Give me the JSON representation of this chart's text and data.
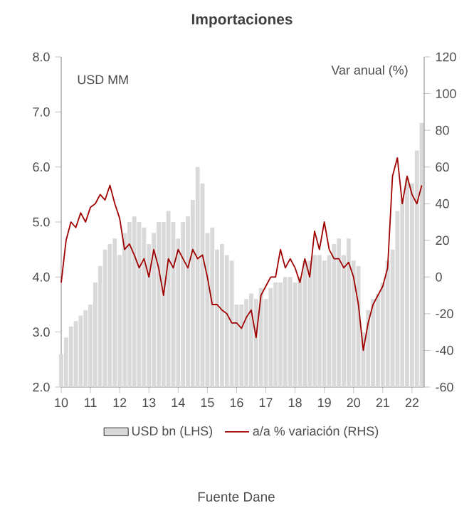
{
  "chart_data": {
    "type": "bar",
    "title": "Importaciones",
    "ylabel": "USD MM",
    "y2label": "Var anual (%)",
    "annotations": [
      "Fuente Dane"
    ],
    "x": [
      "2010-01",
      "2010-03",
      "2010-05",
      "2010-07",
      "2010-09",
      "2010-11",
      "2011-01",
      "2011-03",
      "2011-05",
      "2011-07",
      "2011-09",
      "2011-11",
      "2012-01",
      "2012-03",
      "2012-05",
      "2012-07",
      "2012-09",
      "2012-11",
      "2013-01",
      "2013-03",
      "2013-05",
      "2013-07",
      "2013-09",
      "2013-11",
      "2014-01",
      "2014-03",
      "2014-05",
      "2014-07",
      "2014-09",
      "2014-11",
      "2015-01",
      "2015-03",
      "2015-05",
      "2015-07",
      "2015-09",
      "2015-11",
      "2016-01",
      "2016-03",
      "2016-05",
      "2016-07",
      "2016-09",
      "2016-11",
      "2017-01",
      "2017-03",
      "2017-05",
      "2017-07",
      "2017-09",
      "2017-11",
      "2018-01",
      "2018-03",
      "2018-05",
      "2018-07",
      "2018-09",
      "2018-11",
      "2019-01",
      "2019-03",
      "2019-05",
      "2019-07",
      "2019-09",
      "2019-11",
      "2020-01",
      "2020-03",
      "2020-05",
      "2020-07",
      "2020-09",
      "2020-11",
      "2021-01",
      "2021-03",
      "2021-05",
      "2021-07",
      "2021-09",
      "2021-11",
      "2022-01",
      "2022-03",
      "2022-05"
    ],
    "series": [
      {
        "name": "USD bn (LHS)",
        "color": "#d9d9d9",
        "values": [
          2.6,
          2.9,
          3.1,
          3.2,
          3.3,
          3.4,
          3.5,
          3.9,
          4.2,
          4.5,
          4.6,
          4.7,
          4.4,
          4.8,
          5.0,
          5.1,
          5.0,
          4.9,
          4.6,
          4.8,
          5.0,
          5.0,
          5.2,
          5.0,
          4.7,
          5.0,
          5.1,
          5.4,
          6.0,
          5.7,
          4.8,
          4.9,
          4.5,
          4.6,
          4.4,
          4.3,
          3.5,
          3.5,
          3.6,
          3.7,
          3.6,
          3.8,
          3.6,
          3.8,
          3.9,
          3.9,
          4.0,
          4.0,
          3.9,
          4.0,
          4.3,
          4.3,
          4.4,
          4.4,
          4.3,
          4.4,
          4.6,
          4.7,
          4.4,
          4.7,
          4.3,
          4.2,
          3.0,
          3.4,
          3.6,
          3.7,
          3.9,
          4.3,
          4.5,
          5.2,
          5.4,
          5.8,
          5.7,
          6.3,
          6.8
        ]
      },
      {
        "name": "a/a % variación (RHS)",
        "type": "line",
        "axis": "y2",
        "color": "#a00000",
        "values": [
          -3,
          20,
          30,
          27,
          35,
          30,
          38,
          40,
          45,
          42,
          50,
          40,
          32,
          15,
          18,
          12,
          5,
          10,
          0,
          15,
          5,
          -10,
          10,
          5,
          15,
          10,
          5,
          15,
          10,
          12,
          0,
          -15,
          -15,
          -18,
          -20,
          -25,
          -25,
          -28,
          -22,
          -18,
          -33,
          -10,
          -5,
          0,
          0,
          15,
          5,
          10,
          5,
          -3,
          10,
          0,
          25,
          15,
          30,
          15,
          10,
          10,
          5,
          8,
          0,
          -15,
          -40,
          -25,
          -15,
          -10,
          -5,
          5,
          55,
          65,
          40,
          55,
          45,
          40,
          50
        ]
      }
    ],
    "xlim": [
      "2010-01",
      "2022-06"
    ],
    "xticks": [
      {
        "value": "2010-01",
        "label": "10"
      },
      {
        "value": "2011-01",
        "label": "11"
      },
      {
        "value": "2012-01",
        "label": "12"
      },
      {
        "value": "2013-01",
        "label": "13"
      },
      {
        "value": "2014-01",
        "label": "14"
      },
      {
        "value": "2015-01",
        "label": "15"
      },
      {
        "value": "2016-01",
        "label": "16"
      },
      {
        "value": "2017-01",
        "label": "17"
      },
      {
        "value": "2018-01",
        "label": "18"
      },
      {
        "value": "2019-01",
        "label": "19"
      },
      {
        "value": "2020-01",
        "label": "20"
      },
      {
        "value": "2021-01",
        "label": "21"
      },
      {
        "value": "2022-01",
        "label": "22"
      }
    ],
    "ylim": [
      2,
      8
    ],
    "yticks": [
      {
        "value": 2,
        "label": "2.0"
      },
      {
        "value": 3,
        "label": "3.0"
      },
      {
        "value": 4,
        "label": "4.0"
      },
      {
        "value": 5,
        "label": "5.0"
      },
      {
        "value": 6,
        "label": "6.0"
      },
      {
        "value": 7,
        "label": "7.0"
      },
      {
        "value": 8,
        "label": "8.0"
      }
    ],
    "y2lim": [
      -60,
      120
    ],
    "y2ticks": [
      -60,
      -40,
      -20,
      0,
      20,
      40,
      60,
      80,
      100,
      120
    ],
    "legend": "bottom"
  }
}
